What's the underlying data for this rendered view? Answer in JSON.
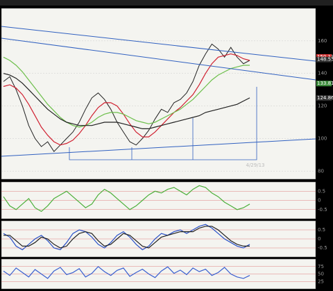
{
  "chart_data": [
    {
      "type": "line",
      "ylim": [
        75,
        180
      ],
      "yticks": [
        80,
        100,
        120,
        140,
        160
      ],
      "annotation": "4/29/13",
      "price_labels": [
        {
          "value": 150.13,
          "color": "#d03030"
        },
        {
          "value": 148.53,
          "color": "#303030"
        },
        {
          "value": 133.81,
          "color": "#3a8a3a"
        },
        {
          "value": 124.86,
          "color": "#303030"
        }
      ],
      "series": [
        {
          "color": "#222222",
          "values": [
            135,
            138,
            130,
            120,
            108,
            100,
            95,
            98,
            92,
            96,
            100,
            104,
            110,
            118,
            125,
            128,
            124,
            118,
            110,
            104,
            98,
            96,
            100,
            105,
            112,
            118,
            116,
            122,
            124,
            128,
            135,
            145,
            152,
            158,
            155,
            150,
            156,
            150,
            146,
            148
          ]
        },
        {
          "color": "#d02030",
          "values": [
            132,
            133,
            131,
            127,
            121,
            114,
            107,
            102,
            98,
            96,
            97,
            99,
            103,
            108,
            114,
            119,
            122,
            122,
            120,
            115,
            109,
            104,
            101,
            101,
            104,
            108,
            112,
            116,
            119,
            123,
            127,
            133,
            140,
            146,
            150,
            151,
            152,
            151,
            149,
            148
          ]
        },
        {
          "color": "#6cbf4a",
          "values": [
            150,
            148,
            145,
            141,
            136,
            131,
            126,
            121,
            117,
            113,
            110,
            108,
            107,
            108,
            110,
            113,
            115,
            116,
            116,
            115,
            113,
            111,
            110,
            109,
            110,
            112,
            114,
            116,
            118,
            121,
            124,
            128,
            132,
            136,
            139,
            141,
            143,
            144,
            145,
            145
          ]
        },
        {
          "color": "#202020",
          "values": [
            140,
            139,
            137,
            134,
            130,
            126,
            122,
            118,
            115,
            112,
            110,
            109,
            108,
            108,
            108,
            109,
            110,
            110,
            110,
            109,
            108,
            107,
            106,
            106,
            107,
            108,
            109,
            110,
            111,
            112,
            113,
            114,
            116,
            117,
            118,
            119,
            120,
            121,
            123,
            125
          ]
        }
      ]
    },
    {
      "type": "line",
      "ylim": [
        -1,
        1
      ],
      "yticks": [
        -0.5,
        0,
        0.5
      ],
      "series": [
        {
          "color": "#4caf3a",
          "values": [
            0.2,
            -0.3,
            -0.5,
            -0.2,
            0.1,
            -0.4,
            -0.6,
            -0.3,
            0.1,
            0.3,
            0.5,
            0.2,
            -0.1,
            -0.4,
            -0.2,
            0.3,
            0.6,
            0.4,
            0.1,
            -0.2,
            -0.5,
            -0.3,
            0,
            0.3,
            0.5,
            0.4,
            0.6,
            0.7,
            0.5,
            0.3,
            0.6,
            0.8,
            0.7,
            0.4,
            0.2,
            -0.1,
            -0.3,
            -0.5,
            -0.4,
            -0.2
          ]
        }
      ]
    },
    {
      "type": "line",
      "ylim": [
        -1,
        1
      ],
      "yticks": [
        -0.5,
        0,
        0.5
      ],
      "series": [
        {
          "color": "#2850c8",
          "values": [
            0.3,
            0.1,
            -0.4,
            -0.6,
            -0.3,
            0,
            0.2,
            -0.1,
            -0.5,
            -0.6,
            -0.2,
            0.3,
            0.5,
            0.4,
            0.1,
            -0.3,
            -0.5,
            -0.2,
            0.2,
            0.4,
            0.1,
            -0.3,
            -0.6,
            -0.4,
            0,
            0.3,
            0.2,
            0.4,
            0.5,
            0.3,
            0.5,
            0.7,
            0.8,
            0.6,
            0.3,
            0,
            -0.2,
            -0.4,
            -0.5,
            -0.3
          ]
        },
        {
          "color": "#202020",
          "values": [
            0.2,
            0.2,
            -0.1,
            -0.4,
            -0.4,
            -0.2,
            0.1,
            0,
            -0.3,
            -0.5,
            -0.4,
            0,
            0.3,
            0.4,
            0.3,
            -0.1,
            -0.4,
            -0.3,
            0,
            0.3,
            0.2,
            -0.1,
            -0.4,
            -0.5,
            -0.2,
            0.1,
            0.2,
            0.3,
            0.4,
            0.4,
            0.4,
            0.6,
            0.7,
            0.7,
            0.5,
            0.2,
            -0.1,
            -0.3,
            -0.4,
            -0.4
          ]
        }
      ]
    },
    {
      "type": "line",
      "ylim": [
        0,
        100
      ],
      "yticks": [
        25,
        50,
        75
      ],
      "series": [
        {
          "color": "#3a60d0",
          "values": [
            60,
            45,
            70,
            55,
            40,
            65,
            50,
            35,
            60,
            72,
            48,
            55,
            68,
            40,
            52,
            75,
            58,
            45,
            62,
            70,
            42,
            55,
            66,
            50,
            38,
            60,
            74,
            52,
            63,
            48,
            70,
            58,
            66,
            45,
            55,
            72,
            50,
            40,
            35,
            45
          ]
        }
      ]
    }
  ]
}
